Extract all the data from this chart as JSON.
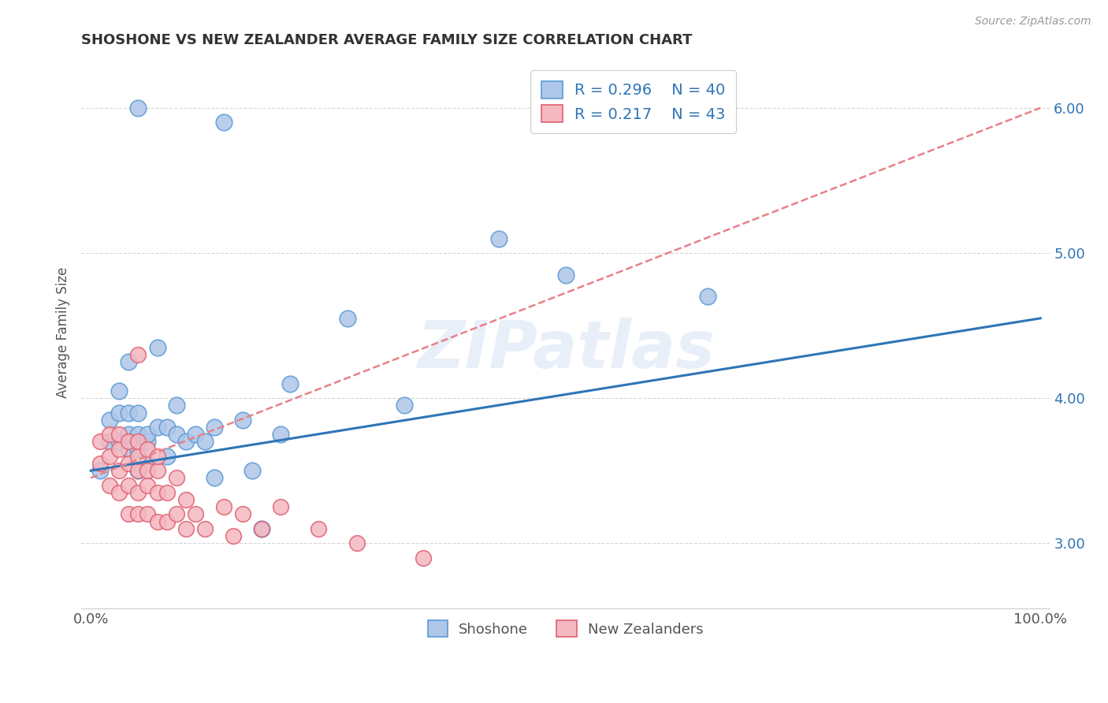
{
  "title": "SHOSHONE VS NEW ZEALANDER AVERAGE FAMILY SIZE CORRELATION CHART",
  "source_text": "Source: ZipAtlas.com",
  "ylabel": "Average Family Size",
  "xlim": [
    -1,
    101
  ],
  "ylim": [
    2.55,
    6.35
  ],
  "yticks": [
    3.0,
    4.0,
    5.0,
    6.0
  ],
  "xticks": [
    0,
    100
  ],
  "xticklabels": [
    "0.0%",
    "100.0%"
  ],
  "yticklabels": [
    "3.00",
    "4.00",
    "5.00",
    "6.00"
  ],
  "shoshone_color": "#aec6e8",
  "shoshone_edge_color": "#5b9bd5",
  "nz_color": "#f4b8c1",
  "nz_edge_color": "#e06070",
  "shoshone_line_color": "#2e75b6",
  "nz_line_color": "#e8808a",
  "legend_r1": "R = 0.296",
  "legend_n1": "N = 40",
  "legend_r2": "R = 0.217",
  "legend_n2": "N = 43",
  "watermark": "ZIPatlas",
  "background_color": "#ffffff",
  "grid_color": "#cccccc",
  "shoshone_line_y0": 3.5,
  "shoshone_line_y100": 4.55,
  "nz_line_y0": 3.45,
  "nz_line_y100": 6.0,
  "shoshone_x": [
    1,
    2,
    2,
    3,
    3,
    3,
    4,
    4,
    4,
    4,
    5,
    5,
    5,
    5,
    5,
    6,
    6,
    6,
    7,
    7,
    8,
    8,
    9,
    9,
    10,
    11,
    12,
    13,
    13,
    14,
    16,
    17,
    18,
    20,
    21,
    27,
    33,
    43,
    50,
    65
  ],
  "shoshone_y": [
    3.5,
    3.7,
    3.85,
    3.7,
    3.9,
    4.05,
    3.65,
    3.75,
    3.9,
    4.25,
    3.5,
    3.65,
    3.75,
    3.9,
    6.0,
    3.55,
    3.7,
    3.75,
    3.8,
    4.35,
    3.6,
    3.8,
    3.75,
    3.95,
    3.7,
    3.75,
    3.7,
    3.45,
    3.8,
    5.9,
    3.85,
    3.5,
    3.1,
    3.75,
    4.1,
    4.55,
    3.95,
    5.1,
    4.85,
    4.7
  ],
  "nz_x": [
    1,
    1,
    2,
    2,
    2,
    3,
    3,
    3,
    3,
    4,
    4,
    4,
    4,
    5,
    5,
    5,
    5,
    5,
    5,
    6,
    6,
    6,
    6,
    7,
    7,
    7,
    7,
    8,
    8,
    9,
    9,
    10,
    10,
    11,
    12,
    14,
    15,
    16,
    18,
    20,
    24,
    28,
    35
  ],
  "nz_y": [
    3.55,
    3.7,
    3.4,
    3.6,
    3.75,
    3.35,
    3.5,
    3.65,
    3.75,
    3.2,
    3.4,
    3.55,
    3.7,
    3.2,
    3.35,
    3.5,
    3.6,
    3.7,
    4.3,
    3.2,
    3.4,
    3.5,
    3.65,
    3.15,
    3.35,
    3.5,
    3.6,
    3.15,
    3.35,
    3.2,
    3.45,
    3.1,
    3.3,
    3.2,
    3.1,
    3.25,
    3.05,
    3.2,
    3.1,
    3.25,
    3.1,
    3.0,
    2.9
  ]
}
